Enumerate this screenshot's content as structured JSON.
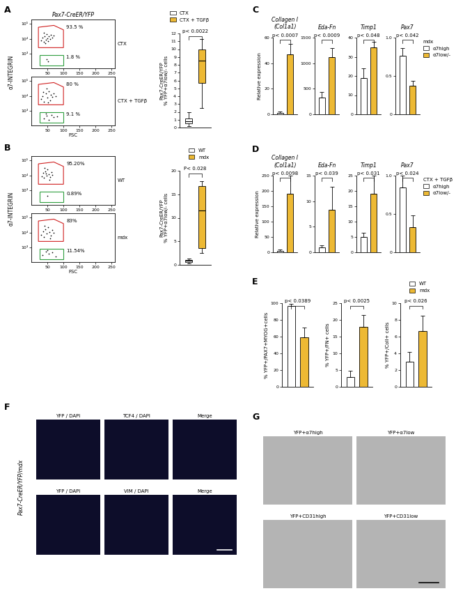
{
  "chart_data": [
    {
      "panel": "A",
      "type": "scatter",
      "title": "Pax7-CreER/YFP",
      "annotations": [
        "CTX"
      ],
      "color": "#000000",
      "x": [
        30,
        35,
        40,
        42,
        45,
        48,
        50,
        52,
        55,
        58,
        60,
        38,
        65,
        44,
        70,
        47,
        53
      ],
      "y": [
        8000,
        12000,
        6000,
        15000,
        9000,
        20000,
        11000,
        7000,
        14000,
        9500,
        18000,
        25000,
        12000,
        5000,
        16000,
        400,
        300
      ],
      "gates": [
        {
          "color": "#d02020",
          "x": [
            22,
            22,
            70,
            100,
            100
          ],
          "y": [
            2500,
            60000,
            80000,
            40000,
            2500
          ],
          "label": {
            "value": 93.5,
            "label": "93.5 %"
          }
        },
        {
          "color": "#2e9e3e",
          "x": [
            25,
            25,
            100,
            100
          ],
          "y": [
            150,
            800,
            800,
            150
          ],
          "label": {
            "value": 1.8,
            "label": "1.8 %"
          }
        }
      ],
      "xlim": [
        0,
        260
      ],
      "xticks": [
        50,
        100,
        150,
        200,
        250
      ],
      "log": "y",
      "ylim": [
        100,
        200000
      ],
      "yticks": [
        {
          "value": 1000,
          "label": "10³"
        },
        {
          "value": 10000,
          "label": "10⁴"
        },
        {
          "value": 100000,
          "label": "10⁵"
        }
      ]
    },
    {
      "type": "scatter",
      "annotations": [
        "CTX + TGFβ"
      ],
      "xlabel": "FSC",
      "ylabel": "α7-INTEGRIN",
      "color": "#000000",
      "x": [
        30,
        34,
        40,
        45,
        50,
        55,
        60,
        65,
        70,
        48,
        58,
        36,
        75,
        52,
        40,
        48,
        55,
        62,
        70,
        80,
        45
      ],
      "y": [
        6000,
        10000,
        4000,
        14000,
        8000,
        20000,
        12000,
        9000,
        15000,
        30000,
        5000,
        18000,
        10000,
        3500,
        300,
        450,
        250,
        500,
        350,
        400,
        600
      ],
      "gates": [
        {
          "color": "#d02020",
          "x": [
            22,
            22,
            70,
            100,
            100
          ],
          "y": [
            2500,
            60000,
            80000,
            40000,
            2500
          ],
          "label": {
            "value": 80,
            "label": "80 %"
          }
        },
        {
          "color": "#2e9e3e",
          "x": [
            25,
            25,
            100,
            100
          ],
          "y": [
            150,
            800,
            800,
            150
          ],
          "label": {
            "value": 9.1,
            "label": "9.1 %"
          }
        }
      ],
      "xlim": [
        0,
        260
      ],
      "xticks": [
        50,
        100,
        150,
        200,
        250
      ],
      "log": "y",
      "ylim": [
        100,
        200000
      ],
      "yticks": [
        {
          "value": 1000,
          "label": "10³"
        },
        {
          "value": 10000,
          "label": "10⁴"
        },
        {
          "value": 100000,
          "label": "10⁵"
        }
      ]
    },
    {
      "type": "box",
      "ylabel": "Pax7-CreER/YFP\n% YFP+α7low/- cells",
      "legend": "top",
      "annotations": [
        "p< 0.0022"
      ],
      "ylim": [
        0,
        12
      ],
      "yticks": [
        0,
        1,
        2,
        3,
        4,
        5,
        6,
        7,
        8,
        9,
        10,
        11,
        12
      ],
      "series": [
        {
          "name": "CTX",
          "color": "#ffffff",
          "stats": {
            "whislo": 0.2,
            "q1": 0.5,
            "med": 0.8,
            "q3": 1.2,
            "whishi": 2.0
          }
        },
        {
          "name": "CTX + TGFβ",
          "color": "#edb934",
          "stats": {
            "whislo": 2.5,
            "q1": 5.7,
            "med": 8.5,
            "q3": 10.0,
            "whishi": 11.3
          }
        }
      ]
    },
    {
      "panel": "B",
      "type": "scatter",
      "annotations": [
        "WT"
      ],
      "color": "#000000",
      "x": [
        32,
        36,
        40,
        44,
        48,
        50,
        54,
        58,
        62,
        66,
        42,
        56,
        46,
        50
      ],
      "y": [
        9000,
        14000,
        7000,
        18000,
        10000,
        25000,
        12000,
        8000,
        16000,
        11000,
        30000,
        5000,
        13000,
        400
      ],
      "gates": [
        {
          "color": "#d02020",
          "x": [
            22,
            22,
            70,
            100,
            100
          ],
          "y": [
            2500,
            60000,
            80000,
            40000,
            2500
          ],
          "label": {
            "value": 95.2,
            "label": "95.20%"
          }
        },
        {
          "color": "#2e9e3e",
          "x": [
            25,
            25,
            100,
            100
          ],
          "y": [
            150,
            800,
            800,
            150
          ],
          "label": {
            "value": 0.89,
            "label": "0.89%"
          }
        }
      ],
      "xlim": [
        0,
        260
      ],
      "xticks": [
        50,
        100,
        150,
        200,
        250
      ],
      "log": "y",
      "ylim": [
        100,
        200000
      ],
      "yticks": [
        {
          "value": 1000,
          "label": "10³"
        },
        {
          "value": 10000,
          "label": "10⁴"
        },
        {
          "value": 100000,
          "label": "10⁵"
        }
      ]
    },
    {
      "type": "scatter",
      "annotations": [
        "mdx"
      ],
      "xlabel": "FSC",
      "ylabel": "α7-INTEGRIN",
      "color": "#000000",
      "x": [
        30,
        36,
        40,
        44,
        48,
        52,
        56,
        60,
        64,
        70,
        42,
        58,
        35,
        45,
        55,
        65,
        75,
        50
      ],
      "y": [
        7000,
        12000,
        5000,
        16000,
        9000,
        22000,
        11000,
        6000,
        14000,
        10000,
        28000,
        4000,
        300,
        500,
        350,
        450,
        250,
        600
      ],
      "gates": [
        {
          "color": "#d02020",
          "x": [
            22,
            22,
            70,
            100,
            100
          ],
          "y": [
            2500,
            60000,
            80000,
            40000,
            2500
          ],
          "label": {
            "value": 83,
            "label": "83%"
          }
        },
        {
          "color": "#2e9e3e",
          "x": [
            25,
            25,
            100,
            100
          ],
          "y": [
            150,
            800,
            800,
            150
          ],
          "label": {
            "value": 11.54,
            "label": "11.54%"
          }
        }
      ],
      "xlim": [
        0,
        260
      ],
      "xticks": [
        50,
        100,
        150,
        200,
        250
      ],
      "log": "y",
      "ylim": [
        100,
        200000
      ],
      "yticks": [
        {
          "value": 1000,
          "label": "10³"
        },
        {
          "value": 10000,
          "label": "10⁴"
        },
        {
          "value": 100000,
          "label": "10⁵"
        }
      ]
    },
    {
      "type": "box",
      "ylabel": "Pax7-CreER/YFP\n% YFP+α7low/- cells",
      "legend": "top",
      "annotations": [
        "P< 0.028"
      ],
      "ylim": [
        0,
        20
      ],
      "yticks": [
        0,
        5,
        10,
        15,
        20
      ],
      "series": [
        {
          "name": "WT",
          "color": "#ffffff",
          "stats": {
            "whislo": 0.3,
            "q1": 0.6,
            "med": 0.9,
            "q3": 1.1,
            "whishi": 1.4
          }
        },
        {
          "name": "mdx",
          "color": "#edb934",
          "stats": {
            "whislo": 2.5,
            "q1": 3.5,
            "med": 11.5,
            "q3": 16.8,
            "whishi": 17.8
          }
        }
      ]
    },
    {
      "panel": "C",
      "type": "bar",
      "title": "Collagen I\n(Col1a1)",
      "ylabel": "Relative expression",
      "tick_labels": "y",
      "values": [
        1,
        47
      ],
      "errors": [
        1,
        8
      ],
      "colors": [
        "#ffffff",
        "#edb934"
      ],
      "ylim": [
        0,
        60
      ],
      "yticks": [
        0,
        20,
        40,
        60
      ],
      "annotations": [
        "p< 0.0007"
      ]
    },
    {
      "type": "bar",
      "title": "Eda-Fn",
      "tick_labels": "y",
      "values": [
        330,
        1120
      ],
      "errors": [
        100,
        180
      ],
      "colors": [
        "#ffffff",
        "#edb934"
      ],
      "ylim": [
        0,
        1500
      ],
      "yticks": [
        0,
        500,
        1000,
        1500
      ],
      "annotations": [
        "p< 0.0009"
      ]
    },
    {
      "type": "bar",
      "title": "Timp1",
      "tick_labels": "y",
      "values": [
        19,
        35
      ],
      "errors": [
        5,
        3
      ],
      "colors": [
        "#ffffff",
        "#edb934"
      ],
      "ylim": [
        0,
        40
      ],
      "yticks": [
        0,
        10,
        20,
        30,
        40
      ],
      "annotations": [
        "p< 0.048"
      ]
    },
    {
      "type": "bar",
      "title": "Pax7",
      "tick_labels": "y",
      "legend": "right",
      "legend_title": "mdx",
      "legend_entries": [
        {
          "name": "α7high",
          "color": "#ffffff"
        },
        {
          "name": "α7low/-",
          "color": "#edb934"
        }
      ],
      "values": [
        0.76,
        0.37
      ],
      "errors": [
        0.1,
        0.07
      ],
      "colors": [
        "#ffffff",
        "#edb934"
      ],
      "ylim": [
        0,
        1
      ],
      "yticks": [
        0,
        0.5,
        {
          "value": 1,
          "label": "1.0"
        }
      ],
      "annotations": [
        "p< 0.042"
      ]
    },
    {
      "panel": "D",
      "type": "bar",
      "title": "Collagen I\n(Col1a1)",
      "ylabel": "Relative expression",
      "tick_labels": "y",
      "values": [
        5,
        190
      ],
      "errors": [
        3,
        60
      ],
      "colors": [
        "#ffffff",
        "#edb934"
      ],
      "ylim": [
        0,
        250
      ],
      "yticks": [
        0,
        50,
        100,
        150,
        200,
        250
      ],
      "annotations": [
        "p< 0.0098"
      ]
    },
    {
      "type": "bar",
      "title": "Eda-Fn",
      "tick_labels": "y",
      "values": [
        1,
        8.3
      ],
      "errors": [
        0.3,
        4.5
      ],
      "colors": [
        "#ffffff",
        "#edb934"
      ],
      "ylim": [
        0,
        15
      ],
      "yticks": [
        0,
        5,
        10,
        15
      ],
      "annotations": [
        "p< 0.039"
      ]
    },
    {
      "type": "bar",
      "title": "Timp1",
      "tick_labels": "y",
      "values": [
        5,
        19
      ],
      "errors": [
        1.3,
        6
      ],
      "colors": [
        "#ffffff",
        "#edb934"
      ],
      "ylim": [
        0,
        25
      ],
      "yticks": [
        0,
        5,
        10,
        15,
        20,
        25
      ],
      "annotations": [
        "p< 0.031"
      ]
    },
    {
      "type": "bar",
      "title": "Pax7",
      "tick_labels": "y",
      "legend": "right",
      "legend_title": "CTX + TGFβ",
      "legend_entries": [
        {
          "name": "α7high",
          "color": "#ffffff"
        },
        {
          "name": "α7low/-",
          "color": "#edb934"
        }
      ],
      "values": [
        0.85,
        0.33
      ],
      "errors": [
        0.15,
        0.15
      ],
      "colors": [
        "#ffffff",
        "#edb934"
      ],
      "ylim": [
        0,
        1
      ],
      "yticks": [
        0,
        0.5,
        {
          "value": 1,
          "label": "1.0"
        }
      ],
      "annotations": [
        "p< 0.024"
      ]
    },
    {
      "panel": "E",
      "type": "bar",
      "ylabel": "% YFP+/PAX7+MYOG+cells",
      "tick_labels": "y",
      "values": [
        97,
        59
      ],
      "errors": [
        2,
        12
      ],
      "colors": [
        "#ffffff",
        "#edb934"
      ],
      "ylim": [
        0,
        100
      ],
      "yticks": [
        0,
        20,
        40,
        60,
        80,
        100
      ],
      "annotations": [
        "p< 0.0389"
      ]
    },
    {
      "type": "bar",
      "ylabel": "% YFP+/FN+ cells",
      "tick_labels": "y",
      "values": [
        3,
        18
      ],
      "errors": [
        1.8,
        3.5
      ],
      "colors": [
        "#ffffff",
        "#edb934"
      ],
      "ylim": [
        0,
        25
      ],
      "yticks": [
        0,
        5,
        10,
        15,
        20,
        25
      ],
      "annotations": [
        "p< 0.0025"
      ]
    },
    {
      "type": "bar",
      "ylabel": "% YFP+/ColI+ cells",
      "tick_labels": "y",
      "legend": "top",
      "legend_entries": [
        {
          "name": "WT",
          "color": "#ffffff"
        },
        {
          "name": "mdx",
          "color": "#edb934"
        }
      ],
      "values": [
        3,
        6.7
      ],
      "errors": [
        1.2,
        1.8
      ],
      "colors": [
        "#ffffff",
        "#edb934"
      ],
      "ylim": [
        0,
        10
      ],
      "yticks": [
        0,
        2,
        4,
        6,
        8,
        10
      ],
      "annotations": [
        "p< 0.026"
      ]
    }
  ],
  "images": [
    {
      "panel": "F",
      "side_label": "Pax7-CreER/YFP/mdx",
      "color": "#0d0d2a",
      "labels": [
        [
          "YFP / DAPI",
          "TCF4 / DAPI",
          "Merge"
        ],
        [
          "YFP / DAPI",
          "VIM / DAPI",
          "Merge"
        ]
      ]
    },
    {
      "panel": "G",
      "color": "#b4b4b4",
      "labels": [
        [
          "YFP+α7high",
          "YFP+α7low"
        ],
        [
          "YFP+CD31high",
          "YFP+CD31low"
        ]
      ]
    }
  ]
}
